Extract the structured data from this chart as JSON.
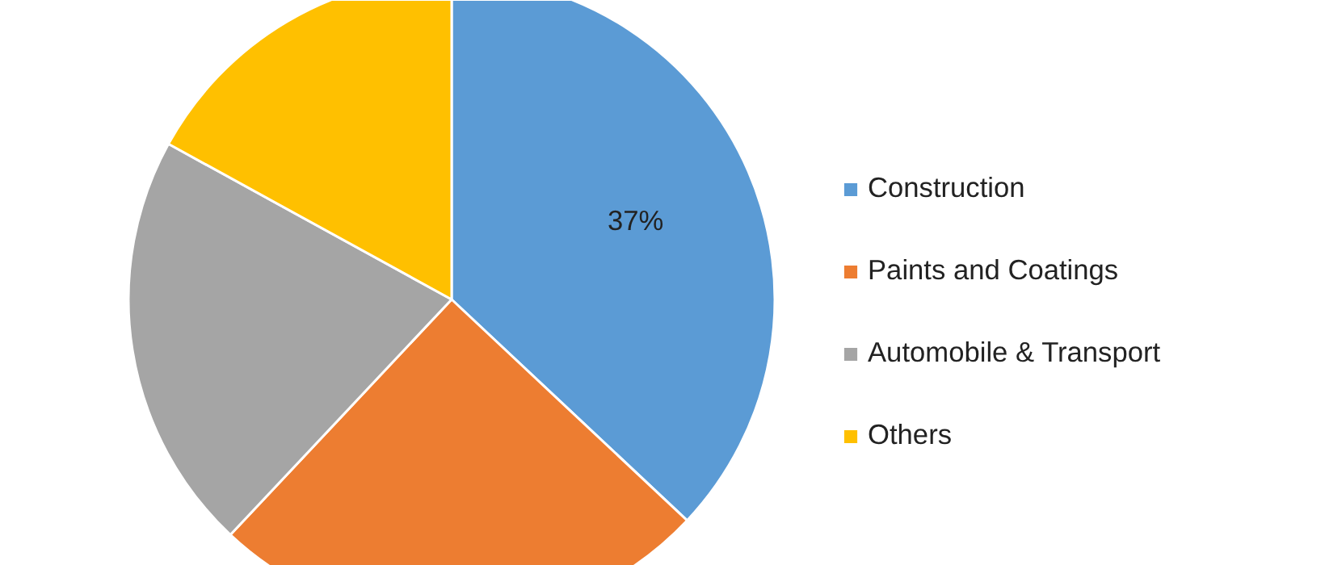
{
  "chart_data": {
    "type": "pie",
    "categories": [
      "Construction",
      "Paints and Coatings",
      "Automobile & Transport",
      "Others"
    ],
    "values": [
      37,
      25,
      21,
      17
    ],
    "colors": [
      "#5b9bd5",
      "#ed7d31",
      "#a5a5a5",
      "#ffc000"
    ],
    "value_labels": [
      "37%",
      null,
      null,
      null
    ],
    "legend": "right"
  }
}
